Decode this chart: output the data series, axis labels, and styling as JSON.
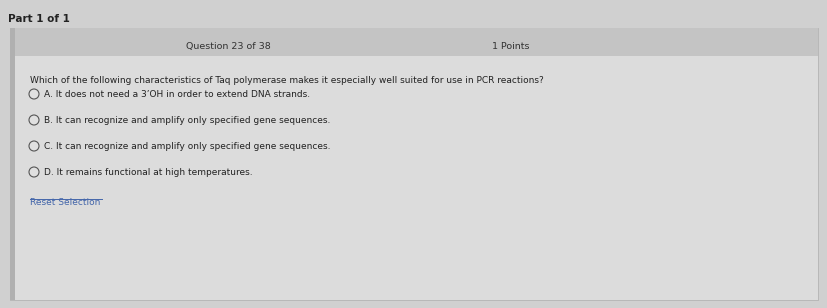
{
  "bg_color": "#d0d0d0",
  "card_bg_color": "#e2e2e2",
  "header_bg_color": "#c4c4c4",
  "q_area_bg_color": "#dcdcdc",
  "part_text": "Part 1 of 1",
  "question_label": "Question 23 of 38",
  "points_label": "1 Points",
  "question_text": "Which of the following characteristics of Taq polymerase makes it especially well suited for use in PCR reactions?",
  "options": [
    "A. It does not need a 3’OH in order to extend DNA strands.",
    "B. It can recognize and amplify only specified gene sequences.",
    "C. It can recognize and amplify only specified gene sequences.",
    "D. It remains functional at high temperatures."
  ],
  "reset_text": "Reset Selection",
  "title_fontsize": 7.5,
  "label_fontsize": 6.8,
  "option_fontsize": 6.5,
  "reset_fontsize": 6.5
}
